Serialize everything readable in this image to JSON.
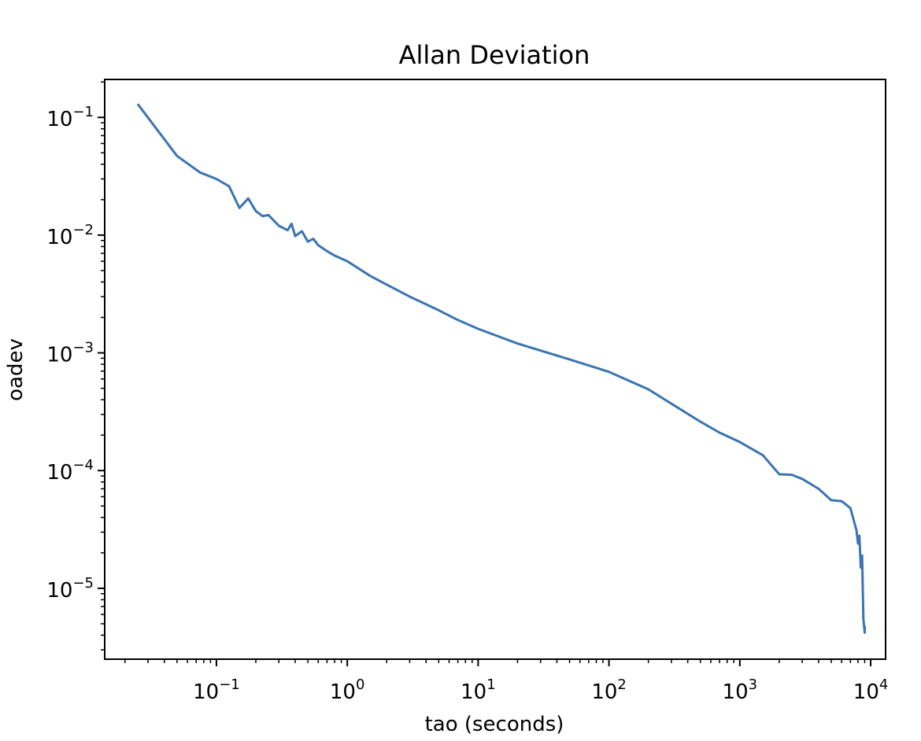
{
  "chart_data": {
    "type": "line",
    "title": "Allan Deviation",
    "xlabel": "tao (seconds)",
    "ylabel": "oadev",
    "xscale": "log",
    "yscale": "log",
    "xlim": [
      0.014,
      13000
    ],
    "ylim": [
      2.5e-06,
      0.21
    ],
    "grid": false,
    "line_color": "#3a75b0",
    "x_ticks": [
      {
        "base": "10",
        "exp": "−1",
        "value": 0.1
      },
      {
        "base": "10",
        "exp": "0",
        "value": 1
      },
      {
        "base": "10",
        "exp": "1",
        "value": 10
      },
      {
        "base": "10",
        "exp": "2",
        "value": 100
      },
      {
        "base": "10",
        "exp": "3",
        "value": 1000
      },
      {
        "base": "10",
        "exp": "4",
        "value": 10000
      }
    ],
    "y_ticks": [
      {
        "base": "10",
        "exp": "−1",
        "value": 0.1
      },
      {
        "base": "10",
        "exp": "−2",
        "value": 0.01
      },
      {
        "base": "10",
        "exp": "−3",
        "value": 0.001
      },
      {
        "base": "10",
        "exp": "−4",
        "value": 0.0001
      },
      {
        "base": "10",
        "exp": "−5",
        "value": 1e-05
      }
    ],
    "series": [
      {
        "name": "oadev",
        "x": [
          0.025,
          0.05,
          0.075,
          0.1,
          0.125,
          0.15,
          0.175,
          0.2,
          0.225,
          0.25,
          0.3,
          0.35,
          0.375,
          0.4,
          0.45,
          0.5,
          0.55,
          0.6,
          0.7,
          0.8,
          1.0,
          1.5,
          2,
          3,
          5,
          7,
          10,
          20,
          50,
          100,
          200,
          300,
          500,
          700,
          1000,
          1500,
          2000,
          2500,
          3000,
          4000,
          5000,
          6000,
          7000,
          7800,
          8000,
          8200,
          8400,
          8600,
          8800,
          9000,
          9000
        ],
        "y": [
          0.13,
          0.047,
          0.034,
          0.03,
          0.026,
          0.017,
          0.0205,
          0.016,
          0.0145,
          0.0148,
          0.012,
          0.011,
          0.0125,
          0.0098,
          0.0108,
          0.0088,
          0.0093,
          0.0082,
          0.0073,
          0.0067,
          0.006,
          0.0045,
          0.0038,
          0.003,
          0.0023,
          0.0019,
          0.0016,
          0.0012,
          0.00088,
          0.00069,
          0.00049,
          0.00037,
          0.00026,
          0.00021,
          0.000175,
          0.000135,
          9.3e-05,
          9.2e-05,
          8.5e-05,
          7e-05,
          5.6e-05,
          5.5e-05,
          4.8e-05,
          3.1e-05,
          2.4e-05,
          2.8e-05,
          1.5e-05,
          1.9e-05,
          5.5e-06,
          4.2e-06,
          4.8e-06
        ]
      }
    ]
  }
}
